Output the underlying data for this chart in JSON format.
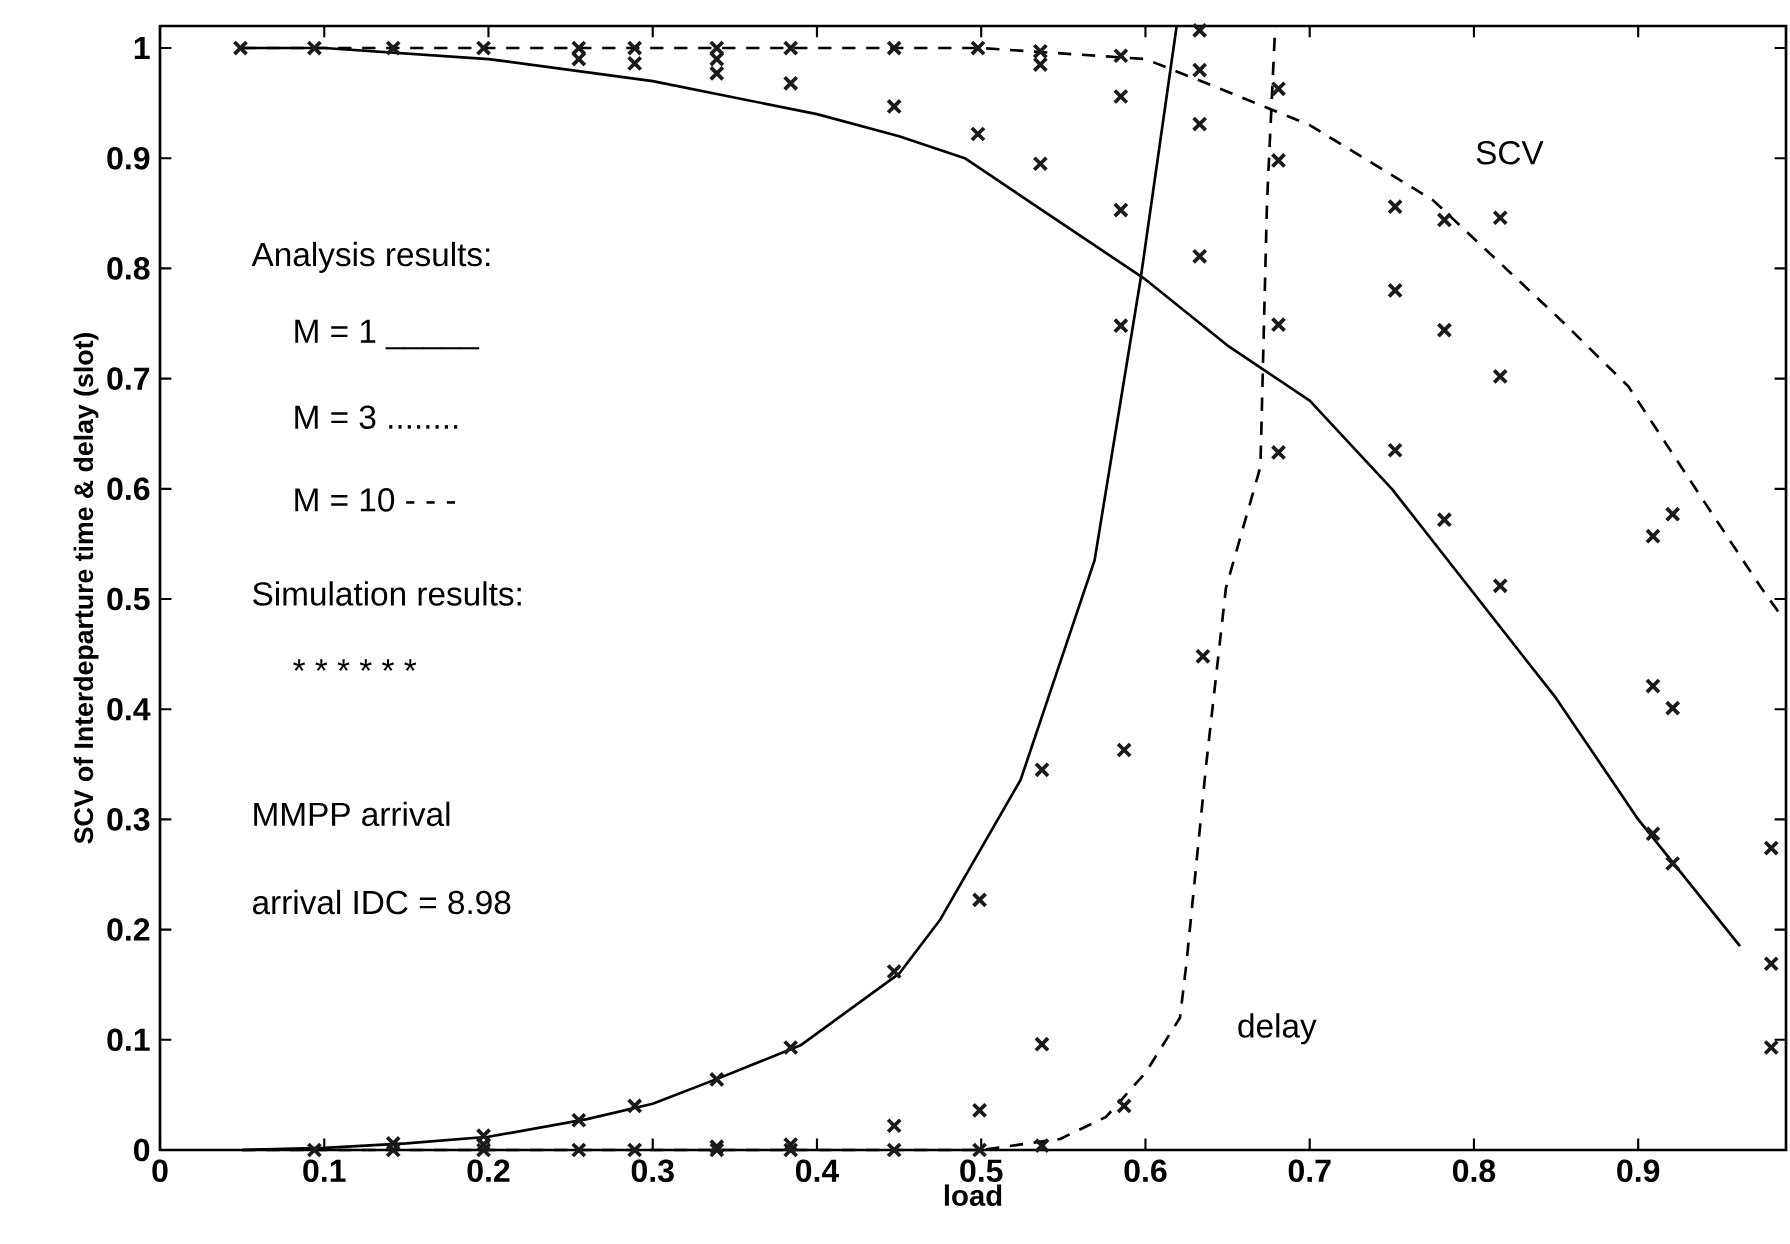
{
  "chart_data": {
    "type": "line",
    "xlabel": "load",
    "ylabel": "SCV of Interdeparture time & delay (slot)",
    "xlim": [
      0,
      0.99
    ],
    "ylim": [
      0,
      1.02
    ],
    "xticks": [
      0,
      0.1,
      0.2,
      0.3,
      0.4,
      0.5,
      0.6,
      0.7,
      0.8,
      0.9
    ],
    "yticks": [
      0,
      0.1,
      0.2,
      0.3,
      0.4,
      0.5,
      0.6,
      0.7,
      0.8,
      0.9,
      1
    ],
    "annotations": [
      "Analysis results:",
      "M = 1 _____",
      "M = 3 ........",
      "M = 10 - - -",
      "Simulation results:",
      "* * * * * *",
      "MMPP arrival",
      "arrival IDC = 8.98",
      "SCV",
      "delay"
    ],
    "series": [
      {
        "type": "line",
        "color": "#000000",
        "line_style": "solid",
        "x": [
          0.05,
          0.1,
          0.2,
          0.3,
          0.4,
          0.45,
          0.49,
          0.55,
          0.6,
          0.65,
          0.7,
          0.75,
          0.8,
          0.85,
          0.9,
          0.962
        ],
        "values": [
          1,
          1,
          0.99,
          0.97,
          0.94,
          0.92,
          0.9,
          0.84,
          0.79,
          0.73,
          0.68,
          0.6,
          0.505,
          0.41,
          0.3,
          0.185
        ]
      },
      {
        "type": "line",
        "color": "#000000",
        "line_style": "solid",
        "x": [
          0.05,
          0.1,
          0.15,
          0.2,
          0.26,
          0.3,
          0.34,
          0.39,
          0.45,
          0.475,
          0.524,
          0.569,
          0.597,
          0.619
        ],
        "values": [
          0,
          0.002,
          0.006,
          0.012,
          0.028,
          0.042,
          0.065,
          0.095,
          0.16,
          0.209,
          0.336,
          0.535,
          0.79,
          1.02
        ]
      },
      {
        "type": "line",
        "color": "#000000",
        "line_style": "dashed",
        "x": [
          0.05,
          0.3,
          0.5,
          0.6,
          0.654,
          0.7,
          0.775,
          0.853,
          0.894,
          0.935,
          0.975,
          0.987
        ],
        "values": [
          1,
          1,
          1,
          0.99,
          0.958,
          0.93,
          0.862,
          0.753,
          0.693,
          0.6,
          0.51,
          0.485
        ]
      },
      {
        "type": "line",
        "color": "#000000",
        "line_style": "dashed",
        "x": [
          0.05,
          0.3,
          0.5,
          0.548,
          0.576,
          0.6,
          0.621,
          0.625,
          0.637,
          0.649,
          0.67,
          0.674,
          0.679
        ],
        "values": [
          0,
          0,
          0,
          0.01,
          0.03,
          0.07,
          0.12,
          0.17,
          0.35,
          0.51,
          0.62,
          0.86,
          1.02
        ]
      },
      {
        "type": "scatter",
        "color": "#1a1a1a",
        "marker": "cross",
        "x": [
          0.049,
          0.094,
          0.094,
          0.142,
          0.142,
          0.142,
          0.197,
          0.197,
          0.197,
          0.197,
          0.255,
          0.255,
          0.255,
          0.255,
          0.289,
          0.289,
          0.289,
          0.289,
          0.339,
          0.339,
          0.339,
          0.339,
          0.339,
          0.339,
          0.384,
          0.384,
          0.384,
          0.384,
          0.384,
          0.447,
          0.447,
          0.447,
          0.447,
          0.447,
          0.498,
          0.498,
          0.499,
          0.499,
          0.499,
          0.536,
          0.536,
          0.536,
          0.537,
          0.537,
          0.537,
          0.585,
          0.585,
          0.585,
          0.585,
          0.587,
          0.587,
          0.633,
          0.633,
          0.633,
          0.633,
          0.635,
          0.681,
          0.681,
          0.681,
          0.681,
          0.752,
          0.752,
          0.752,
          0.782,
          0.782,
          0.782,
          0.816,
          0.816,
          0.816,
          0.909,
          0.909,
          0.909,
          0.921,
          0.921,
          0.921,
          0.981,
          0.981,
          0.981
        ],
        "values": [
          1.0,
          1.0,
          0.0,
          1.0,
          0.006,
          0.0,
          1.0,
          0.013,
          0.005,
          0.0,
          1.0,
          0.99,
          0.027,
          0.0,
          1.0,
          0.986,
          0.04,
          0.0,
          1.0,
          0.99,
          0.977,
          0.064,
          0.003,
          0.0,
          1.0,
          0.968,
          0.093,
          0.005,
          0.0,
          1.0,
          0.947,
          0.162,
          0.022,
          0.0,
          1.0,
          0.922,
          0.227,
          0.036,
          0.0,
          0.997,
          0.985,
          0.895,
          0.345,
          0.096,
          0.004,
          0.993,
          0.956,
          0.853,
          0.748,
          0.363,
          0.04,
          1.016,
          0.98,
          0.931,
          0.811,
          0.448,
          0.963,
          0.898,
          0.749,
          0.633,
          0.856,
          0.78,
          0.635,
          0.844,
          0.744,
          0.572,
          0.846,
          0.702,
          0.512,
          0.557,
          0.421,
          0.287,
          0.577,
          0.401,
          0.26,
          0.274,
          0.169,
          0.093
        ]
      }
    ]
  }
}
